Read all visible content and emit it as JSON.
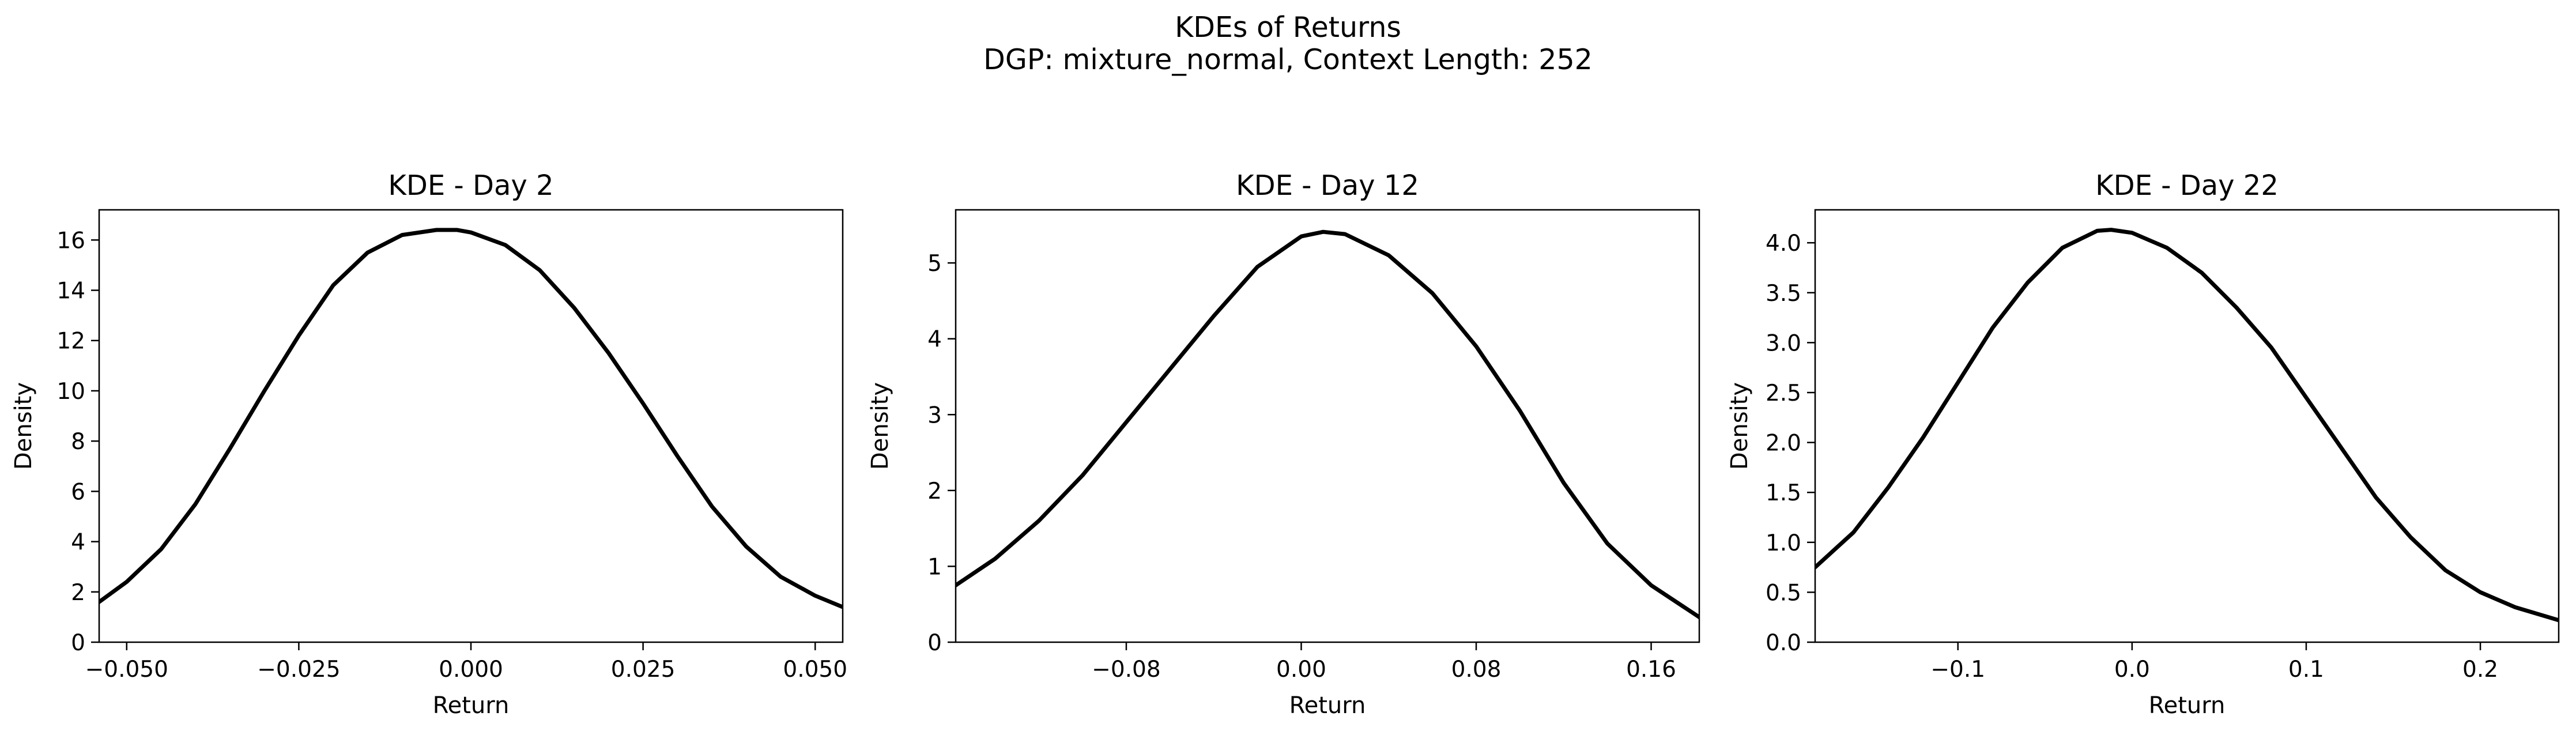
{
  "figure": {
    "title": "KDEs of Returns",
    "subtitle": "DGP: mixture_normal, Context Length: 252"
  },
  "chart_data": [
    {
      "type": "line",
      "title": "KDE - Day 2",
      "xlabel": "Return",
      "ylabel": "Density",
      "xlim": [
        -0.054,
        0.054
      ],
      "ylim": [
        0,
        17.2
      ],
      "xticks": [
        -0.05,
        -0.025,
        0.0,
        0.025,
        0.05
      ],
      "xtick_labels": [
        "−0.050",
        "−0.025",
        "0.000",
        "0.025",
        "0.050"
      ],
      "yticks": [
        0,
        2,
        4,
        6,
        8,
        10,
        12,
        14,
        16
      ],
      "ytick_labels": [
        "0",
        "2",
        "4",
        "6",
        "8",
        "10",
        "12",
        "14",
        "16"
      ],
      "series": [
        {
          "color": "#000000",
          "x": [
            -0.054,
            -0.05,
            -0.045,
            -0.04,
            -0.035,
            -0.03,
            -0.025,
            -0.02,
            -0.015,
            -0.01,
            -0.005,
            -0.002,
            0.0,
            0.005,
            0.01,
            0.015,
            0.02,
            0.025,
            0.03,
            0.035,
            0.04,
            0.045,
            0.05,
            0.054
          ],
          "y": [
            1.6,
            2.4,
            3.7,
            5.5,
            7.7,
            10.0,
            12.2,
            14.2,
            15.5,
            16.2,
            16.4,
            16.4,
            16.3,
            15.8,
            14.8,
            13.3,
            11.5,
            9.5,
            7.4,
            5.4,
            3.8,
            2.6,
            1.85,
            1.4
          ]
        }
      ]
    },
    {
      "type": "line",
      "title": "KDE - Day 12",
      "xlabel": "Return",
      "ylabel": "Density",
      "xlim": [
        -0.158,
        0.182
      ],
      "ylim": [
        0,
        5.7
      ],
      "xticks": [
        -0.08,
        0.0,
        0.08,
        0.16
      ],
      "xtick_labels": [
        "−0.08",
        "0.00",
        "0.08",
        "0.16"
      ],
      "yticks": [
        0,
        1,
        2,
        3,
        4,
        5
      ],
      "ytick_labels": [
        "0",
        "1",
        "2",
        "3",
        "4",
        "5"
      ],
      "series": [
        {
          "color": "#000000",
          "x": [
            -0.158,
            -0.14,
            -0.12,
            -0.1,
            -0.08,
            -0.06,
            -0.04,
            -0.02,
            0.0,
            0.01,
            0.02,
            0.04,
            0.06,
            0.08,
            0.1,
            0.12,
            0.14,
            0.16,
            0.182
          ],
          "y": [
            0.75,
            1.1,
            1.6,
            2.2,
            2.9,
            3.6,
            4.3,
            4.95,
            5.35,
            5.41,
            5.38,
            5.1,
            4.6,
            3.9,
            3.05,
            2.1,
            1.3,
            0.75,
            0.33
          ]
        }
      ]
    },
    {
      "type": "line",
      "title": "KDE - Day 22",
      "xlabel": "Return",
      "ylabel": "Density",
      "xlim": [
        -0.182,
        0.245
      ],
      "ylim": [
        0,
        4.33
      ],
      "xticks": [
        -0.1,
        0.0,
        0.1,
        0.2
      ],
      "xtick_labels": [
        "−0.1",
        "0.0",
        "0.1",
        "0.2"
      ],
      "yticks": [
        0.0,
        0.5,
        1.0,
        1.5,
        2.0,
        2.5,
        3.0,
        3.5,
        4.0
      ],
      "ytick_labels": [
        "0.0",
        "0.5",
        "1.0",
        "1.5",
        "2.0",
        "2.5",
        "3.0",
        "3.5",
        "4.0"
      ],
      "series": [
        {
          "color": "#000000",
          "x": [
            -0.182,
            -0.16,
            -0.14,
            -0.12,
            -0.1,
            -0.08,
            -0.06,
            -0.04,
            -0.02,
            -0.012,
            0.0,
            0.02,
            0.04,
            0.06,
            0.08,
            0.1,
            0.12,
            0.14,
            0.16,
            0.18,
            0.2,
            0.22,
            0.245
          ],
          "y": [
            0.75,
            1.1,
            1.55,
            2.05,
            2.6,
            3.15,
            3.6,
            3.95,
            4.12,
            4.13,
            4.1,
            3.95,
            3.7,
            3.35,
            2.95,
            2.45,
            1.95,
            1.45,
            1.05,
            0.72,
            0.5,
            0.35,
            0.22
          ]
        }
      ]
    }
  ]
}
